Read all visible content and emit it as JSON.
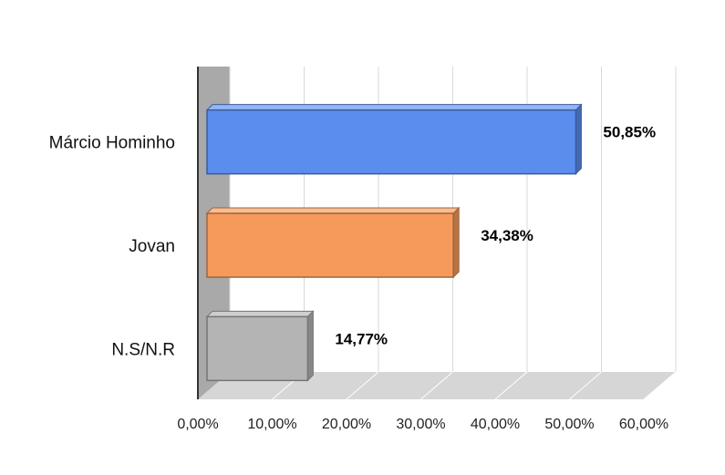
{
  "chart_data": {
    "type": "bar",
    "orientation": "horizontal",
    "style": "3d",
    "categories": [
      "Márcio Hominho",
      "Jovan",
      "N.S/N.R"
    ],
    "values": [
      50.85,
      34.38,
      14.77
    ],
    "value_labels": [
      "50,85%",
      "34,38%",
      "14,77%"
    ],
    "colors": [
      "#5B8DEF",
      "#F59A5B",
      "#B4B4B4"
    ],
    "xlim": [
      0,
      60
    ],
    "ticks": [
      0,
      10,
      20,
      30,
      40,
      50,
      60
    ],
    "tick_labels": [
      "0,00%",
      "10,00%",
      "20,00%",
      "30,00%",
      "40,00%",
      "50,00%",
      "60,00%"
    ],
    "grid": true,
    "legend": "none",
    "title": "",
    "xlabel": "",
    "ylabel": ""
  }
}
